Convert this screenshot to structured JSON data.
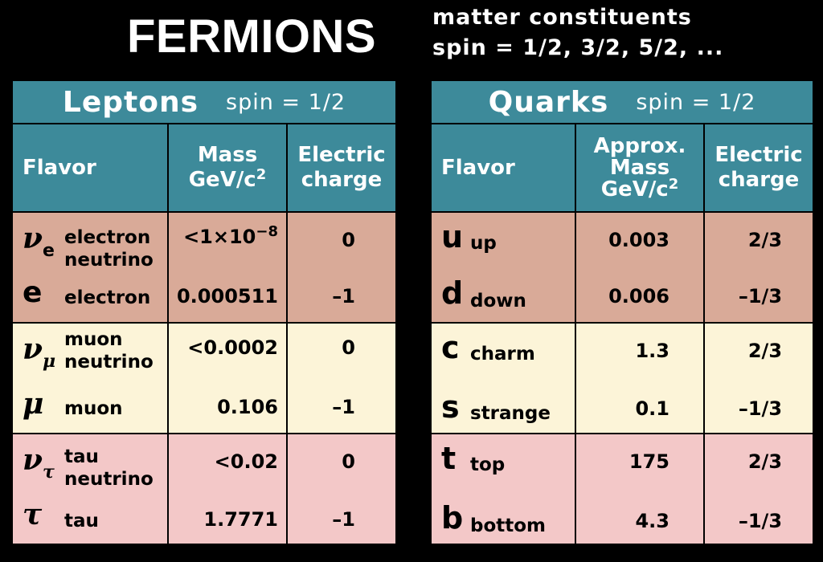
{
  "title": "FERMIONS",
  "subtitle_line1": "matter constituents",
  "subtitle_line2": "spin = 1/2, 3/2, 5/2, ...",
  "leptons": {
    "heading": "Leptons",
    "spin": "spin = 1/2",
    "col_flavor": "Flavor",
    "col_mass_line1": "Mass",
    "col_mass_line2": "GeV/c",
    "col_mass_sup": "2",
    "col_charge_line1": "Electric",
    "col_charge_line2": "charge",
    "rows": [
      {
        "symbol": "ν",
        "subscript": "e",
        "name": "electron\nneutrino",
        "mass_base": "<1×10",
        "mass_exp": "−8",
        "charge": "0"
      },
      {
        "symbol": "e",
        "subscript": "",
        "name": "electron",
        "mass": "0.000511",
        "charge": "–1"
      },
      {
        "symbol": "ν",
        "subscript": "μ",
        "name": "muon\nneutrino",
        "mass": "<0.0002",
        "charge": "0"
      },
      {
        "symbol": "μ",
        "subscript": "",
        "name": "muon",
        "mass": "0.106",
        "charge": "–1"
      },
      {
        "symbol": "ν",
        "subscript": "τ",
        "name": "tau\nneutrino",
        "mass": "<0.02",
        "charge": "0"
      },
      {
        "symbol": "τ",
        "subscript": "",
        "name": "tau",
        "mass": "1.7771",
        "charge": "–1"
      }
    ]
  },
  "quarks": {
    "heading": "Quarks",
    "spin": "spin = 1/2",
    "col_flavor": "Flavor",
    "col_mass_line1": "Approx.",
    "col_mass_line2": "Mass",
    "col_mass_line3": "GeV/c",
    "col_mass_sup": "2",
    "col_charge_line1": "Electric",
    "col_charge_line2": "charge",
    "rows": [
      {
        "symbol": "u",
        "name": "up",
        "mass": "0.003",
        "charge": "2/3"
      },
      {
        "symbol": "d",
        "name": "down",
        "mass": "0.006",
        "charge": "–1/3"
      },
      {
        "symbol": "c",
        "name": "charm",
        "mass": "1.3",
        "charge": "2/3"
      },
      {
        "symbol": "s",
        "name": "strange",
        "mass": "0.1",
        "charge": "–1/3"
      },
      {
        "symbol": "t",
        "name": "top",
        "mass": "175",
        "charge": "2/3"
      },
      {
        "symbol": "b",
        "name": "bottom",
        "mass": "4.3",
        "charge": "–1/3"
      }
    ]
  },
  "colors": {
    "background": "#000000",
    "header": "#3d8a9a",
    "generation1": "#d9aa98",
    "generation2": "#fcf4d8",
    "generation3": "#f3c8c8"
  }
}
